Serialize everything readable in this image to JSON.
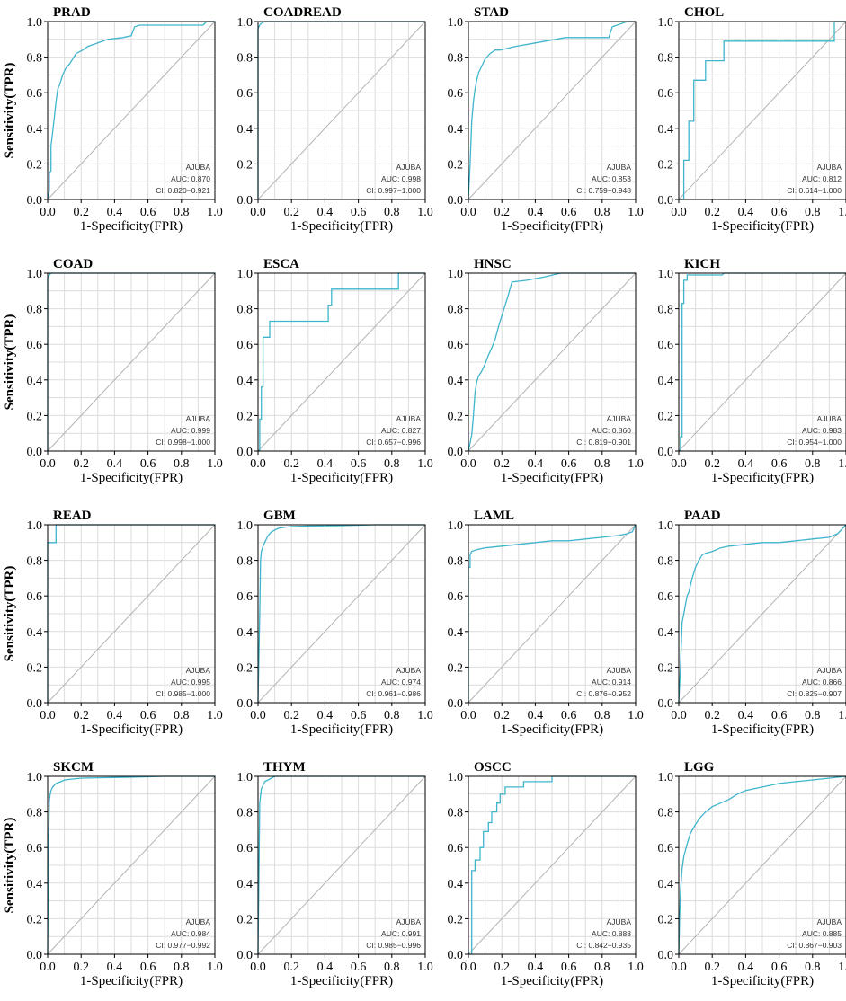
{
  "figure": {
    "xlabel": "1-Specificity(FPR)",
    "ylabel": "Sensitivity(TPR)",
    "ticks": [
      "0.0",
      "0.2",
      "0.4",
      "0.6",
      "0.8",
      "1.0"
    ],
    "colors": {
      "roc": "#3fb5cc",
      "diagonal": "#b3b3b3",
      "grid": "#dcdcdc",
      "text": "#000000",
      "stats": "#333333"
    }
  },
  "chart_data": [
    {
      "type": "line",
      "title": "PRAD",
      "gene": "AJUBA",
      "auc_label": "AUC: 0.870",
      "ci_label": "CI: 0.820−0.921",
      "xlabel": "1-Specificity(FPR)",
      "ylabel": "Sensitivity(TPR)",
      "xlim": [
        0,
        1
      ],
      "ylim": [
        0,
        1
      ],
      "grid": true,
      "series": [
        {
          "x": [
            0,
            0.01,
            0.01,
            0.02,
            0.02,
            0.03,
            0.04,
            0.05,
            0.06,
            0.07,
            0.08,
            0.09,
            0.1,
            0.11,
            0.13,
            0.15,
            0.17,
            0.19,
            0.21,
            0.24,
            0.3,
            0.36,
            0.45,
            0.5,
            0.52,
            0.55,
            0.93,
            0.95,
            1
          ],
          "y": [
            0,
            0.05,
            0.15,
            0.16,
            0.3,
            0.38,
            0.46,
            0.55,
            0.62,
            0.64,
            0.67,
            0.7,
            0.72,
            0.74,
            0.76,
            0.79,
            0.82,
            0.83,
            0.84,
            0.86,
            0.88,
            0.9,
            0.91,
            0.92,
            0.97,
            0.98,
            0.98,
            1,
            1
          ]
        }
      ]
    },
    {
      "type": "line",
      "title": "COADREAD",
      "gene": "AJUBA",
      "auc_label": "AUC: 0.998",
      "ci_label": "CI: 0.997−1.000",
      "xlabel": "1-Specificity(FPR)",
      "ylabel": "",
      "xlim": [
        0,
        1
      ],
      "ylim": [
        0,
        1
      ],
      "grid": true,
      "series": [
        {
          "x": [
            0,
            0,
            0.01,
            0.02,
            0.04,
            1
          ],
          "y": [
            0,
            0.96,
            0.98,
            0.99,
            1,
            1
          ]
        }
      ]
    },
    {
      "type": "line",
      "title": "STAD",
      "gene": "AJUBA",
      "auc_label": "AUC: 0.853",
      "ci_label": "CI: 0.759−0.948",
      "xlabel": "1-Specificity(FPR)",
      "ylabel": "",
      "xlim": [
        0,
        1
      ],
      "ylim": [
        0,
        1
      ],
      "grid": true,
      "series": [
        {
          "x": [
            0,
            0.01,
            0.02,
            0.03,
            0.04,
            0.05,
            0.06,
            0.08,
            0.1,
            0.13,
            0.16,
            0.19,
            0.28,
            0.4,
            0.58,
            0.84,
            0.86,
            0.95,
            0.97,
            1
          ],
          "y": [
            0,
            0.2,
            0.44,
            0.55,
            0.62,
            0.67,
            0.71,
            0.75,
            0.79,
            0.82,
            0.84,
            0.84,
            0.86,
            0.88,
            0.91,
            0.91,
            0.97,
            1,
            1,
            1
          ]
        }
      ]
    },
    {
      "type": "line",
      "title": "CHOL",
      "gene": "AJUBA",
      "auc_label": "AUC: 0.812",
      "ci_label": "CI: 0.614−1.000",
      "xlabel": "1-Specificity(FPR)",
      "ylabel": "",
      "xlim": [
        0,
        1
      ],
      "ylim": [
        0,
        1
      ],
      "grid": true,
      "series": [
        {
          "x": [
            0,
            0.03,
            0.03,
            0.06,
            0.06,
            0.09,
            0.09,
            0.16,
            0.16,
            0.27,
            0.27,
            0.93,
            0.93,
            1
          ],
          "y": [
            0,
            0,
            0.22,
            0.22,
            0.44,
            0.44,
            0.67,
            0.67,
            0.78,
            0.78,
            0.89,
            0.89,
            1,
            1
          ]
        }
      ]
    },
    {
      "type": "line",
      "title": "COAD",
      "gene": "AJUBA",
      "auc_label": "AUC: 0.999",
      "ci_label": "CI: 0.998−1.000",
      "xlabel": "1-Specificity(FPR)",
      "ylabel": "Sensitivity(TPR)",
      "xlim": [
        0,
        1
      ],
      "ylim": [
        0,
        1
      ],
      "grid": true,
      "series": [
        {
          "x": [
            0,
            0,
            0.01,
            0.02,
            1
          ],
          "y": [
            0,
            0.97,
            0.99,
            1,
            1
          ]
        }
      ]
    },
    {
      "type": "line",
      "title": "ESCA",
      "gene": "AJUBA",
      "auc_label": "AUC: 0.827",
      "ci_label": "CI: 0.657−0.996",
      "xlabel": "1-Specificity(FPR)",
      "ylabel": "",
      "xlim": [
        0,
        1
      ],
      "ylim": [
        0,
        1
      ],
      "grid": true,
      "series": [
        {
          "x": [
            0,
            0.01,
            0.01,
            0.02,
            0.02,
            0.03,
            0.03,
            0.07,
            0.07,
            0.42,
            0.42,
            0.44,
            0.44,
            0.84,
            0.84,
            1
          ],
          "y": [
            0,
            0,
            0.18,
            0.18,
            0.36,
            0.36,
            0.64,
            0.64,
            0.73,
            0.73,
            0.82,
            0.82,
            0.91,
            0.91,
            1,
            1
          ]
        }
      ]
    },
    {
      "type": "line",
      "title": "HNSC",
      "gene": "AJUBA",
      "auc_label": "AUC: 0.860",
      "ci_label": "CI: 0.819−0.901",
      "xlabel": "1-Specificity(FPR)",
      "ylabel": "",
      "xlim": [
        0,
        1
      ],
      "ylim": [
        0,
        1
      ],
      "grid": true,
      "series": [
        {
          "x": [
            0,
            0.02,
            0.03,
            0.04,
            0.05,
            0.06,
            0.08,
            0.1,
            0.12,
            0.14,
            0.16,
            0.18,
            0.2,
            0.22,
            0.24,
            0.26,
            0.35,
            0.46,
            0.55,
            1
          ],
          "y": [
            0,
            0.09,
            0.2,
            0.33,
            0.39,
            0.42,
            0.45,
            0.49,
            0.54,
            0.58,
            0.63,
            0.7,
            0.76,
            0.82,
            0.88,
            0.95,
            0.96,
            0.98,
            1,
            1
          ]
        }
      ]
    },
    {
      "type": "line",
      "title": "KICH",
      "gene": "AJUBA",
      "auc_label": "AUC: 0.983",
      "ci_label": "CI: 0.954−1.000",
      "xlabel": "1-Specificity(FPR)",
      "ylabel": "",
      "xlim": [
        0,
        1
      ],
      "ylim": [
        0,
        1
      ],
      "grid": true,
      "series": [
        {
          "x": [
            0,
            0.01,
            0.01,
            0.02,
            0.02,
            0.03,
            0.03,
            0.05,
            0.05,
            0.26,
            0.27,
            1
          ],
          "y": [
            0,
            0,
            0.08,
            0.08,
            0.83,
            0.83,
            0.96,
            0.96,
            0.99,
            0.99,
            1,
            1
          ]
        }
      ]
    },
    {
      "type": "line",
      "title": "READ",
      "gene": "AJUBA",
      "auc_label": "AUC: 0.995",
      "ci_label": "CI: 0.985−1.000",
      "xlabel": "1-Specificity(FPR)",
      "ylabel": "Sensitivity(TPR)",
      "xlim": [
        0,
        1
      ],
      "ylim": [
        0,
        1
      ],
      "grid": true,
      "series": [
        {
          "x": [
            0,
            0,
            0.05,
            0.05,
            1
          ],
          "y": [
            0,
            0.9,
            0.9,
            1,
            1
          ]
        }
      ]
    },
    {
      "type": "line",
      "title": "GBM",
      "gene": "AJUBA",
      "auc_label": "AUC: 0.974",
      "ci_label": "CI: 0.961−0.986",
      "xlabel": "1-Specificity(FPR)",
      "ylabel": "",
      "xlim": [
        0,
        1
      ],
      "ylim": [
        0,
        1
      ],
      "grid": true,
      "series": [
        {
          "x": [
            0,
            0.01,
            0.015,
            0.02,
            0.03,
            0.04,
            0.05,
            0.06,
            0.08,
            0.1,
            0.12,
            0.15,
            0.2,
            0.3,
            0.5,
            0.7,
            1
          ],
          "y": [
            0,
            0.5,
            0.8,
            0.85,
            0.88,
            0.9,
            0.92,
            0.94,
            0.96,
            0.97,
            0.98,
            0.985,
            0.99,
            0.993,
            0.995,
            1,
            1
          ]
        }
      ]
    },
    {
      "type": "line",
      "title": "LAML",
      "gene": "AJUBA",
      "auc_label": "AUC: 0.914",
      "ci_label": "CI: 0.876−0.952",
      "xlabel": "1-Specificity(FPR)",
      "ylabel": "",
      "xlim": [
        0,
        1
      ],
      "ylim": [
        0,
        1
      ],
      "grid": true,
      "series": [
        {
          "x": [
            0,
            0,
            0.01,
            0.01,
            0.02,
            0.05,
            0.1,
            0.2,
            0.3,
            0.4,
            0.5,
            0.6,
            0.7,
            0.8,
            0.9,
            0.95,
            0.98,
            1
          ],
          "y": [
            0,
            0.76,
            0.76,
            0.83,
            0.85,
            0.86,
            0.87,
            0.88,
            0.89,
            0.9,
            0.91,
            0.91,
            0.92,
            0.93,
            0.94,
            0.95,
            0.96,
            1
          ]
        }
      ]
    },
    {
      "type": "line",
      "title": "PAAD",
      "gene": "AJUBA",
      "auc_label": "AUC: 0.866",
      "ci_label": "CI: 0.825−0.907",
      "xlabel": "1-Specificity(FPR)",
      "ylabel": "",
      "xlim": [
        0,
        1
      ],
      "ylim": [
        0,
        1
      ],
      "grid": true,
      "series": [
        {
          "x": [
            0,
            0.01,
            0.02,
            0.03,
            0.04,
            0.05,
            0.06,
            0.08,
            0.1,
            0.12,
            0.14,
            0.16,
            0.2,
            0.25,
            0.3,
            0.4,
            0.5,
            0.6,
            0.7,
            0.8,
            0.9,
            0.95,
            1
          ],
          "y": [
            0,
            0.2,
            0.45,
            0.5,
            0.55,
            0.6,
            0.62,
            0.7,
            0.76,
            0.8,
            0.83,
            0.84,
            0.85,
            0.87,
            0.88,
            0.89,
            0.9,
            0.9,
            0.91,
            0.92,
            0.93,
            0.95,
            1
          ]
        }
      ]
    },
    {
      "type": "line",
      "title": "SKCM",
      "gene": "AJUBA",
      "auc_label": "AUC: 0.984",
      "ci_label": "CI: 0.977−0.992",
      "xlabel": "1-Specificity(FPR)",
      "ylabel": "Sensitivity(TPR)",
      "xlim": [
        0,
        1
      ],
      "ylim": [
        0,
        1
      ],
      "grid": true,
      "series": [
        {
          "x": [
            0,
            0.005,
            0.01,
            0.015,
            0.02,
            0.03,
            0.05,
            0.08,
            0.1,
            0.15,
            0.2,
            0.3,
            0.5,
            0.7,
            1
          ],
          "y": [
            0,
            0.6,
            0.86,
            0.9,
            0.92,
            0.94,
            0.96,
            0.97,
            0.98,
            0.985,
            0.99,
            0.992,
            0.995,
            1,
            1
          ]
        }
      ]
    },
    {
      "type": "line",
      "title": "THYM",
      "gene": "AJUBA",
      "auc_label": "AUC: 0.991",
      "ci_label": "CI: 0.985−0.996",
      "xlabel": "1-Specificity(FPR)",
      "ylabel": "",
      "xlim": [
        0,
        1
      ],
      "ylim": [
        0,
        1
      ],
      "grid": true,
      "series": [
        {
          "x": [
            0,
            0.01,
            0.02,
            0.03,
            0.04,
            0.06,
            0.08,
            0.1,
            0.12,
            0.15,
            1
          ],
          "y": [
            0,
            0.85,
            0.93,
            0.95,
            0.97,
            0.98,
            0.99,
            1,
            1,
            1,
            1
          ]
        }
      ]
    },
    {
      "type": "line",
      "title": "OSCC",
      "gene": "AJUBA",
      "auc_label": "AUC: 0.888",
      "ci_label": "CI: 0.842−0.935",
      "xlabel": "1-Specificity(FPR)",
      "ylabel": "",
      "xlim": [
        0,
        1
      ],
      "ylim": [
        0,
        1
      ],
      "grid": true,
      "series": [
        {
          "x": [
            0,
            0.02,
            0.02,
            0.04,
            0.04,
            0.07,
            0.07,
            0.09,
            0.09,
            0.12,
            0.12,
            0.14,
            0.14,
            0.17,
            0.17,
            0.19,
            0.19,
            0.22,
            0.22,
            0.33,
            0.33,
            0.5,
            0.5,
            1
          ],
          "y": [
            0,
            0,
            0.47,
            0.47,
            0.53,
            0.53,
            0.6,
            0.6,
            0.69,
            0.69,
            0.74,
            0.74,
            0.8,
            0.8,
            0.85,
            0.85,
            0.9,
            0.9,
            0.94,
            0.94,
            0.97,
            0.97,
            1,
            1
          ]
        }
      ]
    },
    {
      "type": "line",
      "title": "LGG",
      "gene": "AJUBA",
      "auc_label": "AUC: 0.885",
      "ci_label": "CI: 0.867−0.903",
      "xlabel": "1-Specificity(FPR)",
      "ylabel": "",
      "xlim": [
        0,
        1
      ],
      "ylim": [
        0,
        1
      ],
      "grid": true,
      "series": [
        {
          "x": [
            0,
            0.005,
            0.01,
            0.02,
            0.03,
            0.05,
            0.07,
            0.1,
            0.13,
            0.16,
            0.2,
            0.25,
            0.3,
            0.35,
            0.4,
            0.5,
            0.6,
            0.7,
            0.8,
            0.9,
            1
          ],
          "y": [
            0,
            0.2,
            0.35,
            0.48,
            0.55,
            0.62,
            0.68,
            0.73,
            0.77,
            0.8,
            0.83,
            0.85,
            0.87,
            0.9,
            0.92,
            0.94,
            0.96,
            0.97,
            0.98,
            0.99,
            1
          ]
        }
      ]
    }
  ]
}
